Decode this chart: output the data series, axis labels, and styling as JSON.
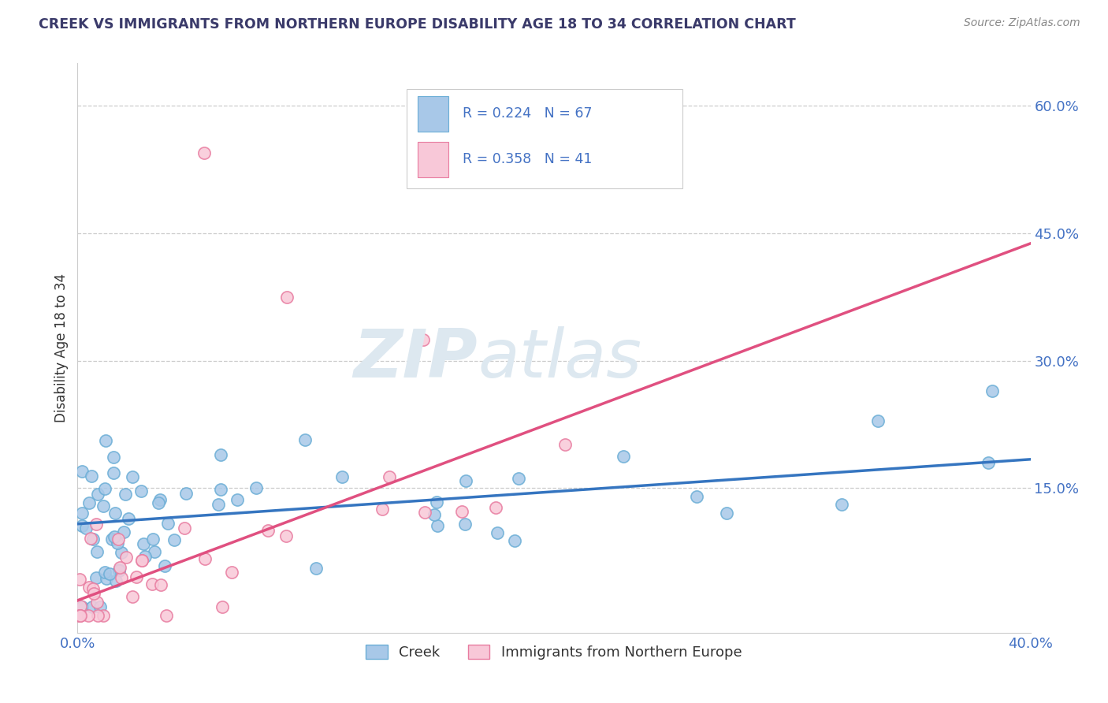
{
  "title": "CREEK VS IMMIGRANTS FROM NORTHERN EUROPE DISABILITY AGE 18 TO 34 CORRELATION CHART",
  "source_text": "Source: ZipAtlas.com",
  "ylabel": "Disability Age 18 to 34",
  "xlim": [
    0.0,
    0.4
  ],
  "ylim": [
    -0.02,
    0.65
  ],
  "xticks": [
    0.0,
    0.4
  ],
  "xtick_labels": [
    "0.0%",
    "40.0%"
  ],
  "yticks": [
    0.0,
    0.15,
    0.3,
    0.45,
    0.6
  ],
  "ytick_labels": [
    "",
    "15.0%",
    "30.0%",
    "45.0%",
    "60.0%"
  ],
  "creek_color": "#a8c8e8",
  "creek_edge_color": "#6baed6",
  "immigrant_color": "#f8c8d8",
  "immigrant_edge_color": "#e87ca0",
  "creek_line_color": "#3575c0",
  "immigrant_line_color": "#e05080",
  "legend_r_creek": "R = 0.224",
  "legend_n_creek": "N = 67",
  "legend_r_immigrant": "R = 0.358",
  "legend_n_immigrant": "N = 41",
  "creek_label": "Creek",
  "immigrant_label": "Immigrants from Northern Europe",
  "title_color": "#3a3a6a",
  "axis_label_color": "#333333",
  "axis_tick_color": "#4472c4",
  "grid_color": "#cccccc",
  "source_color": "#888888",
  "watermark_color": "#dde8f0"
}
